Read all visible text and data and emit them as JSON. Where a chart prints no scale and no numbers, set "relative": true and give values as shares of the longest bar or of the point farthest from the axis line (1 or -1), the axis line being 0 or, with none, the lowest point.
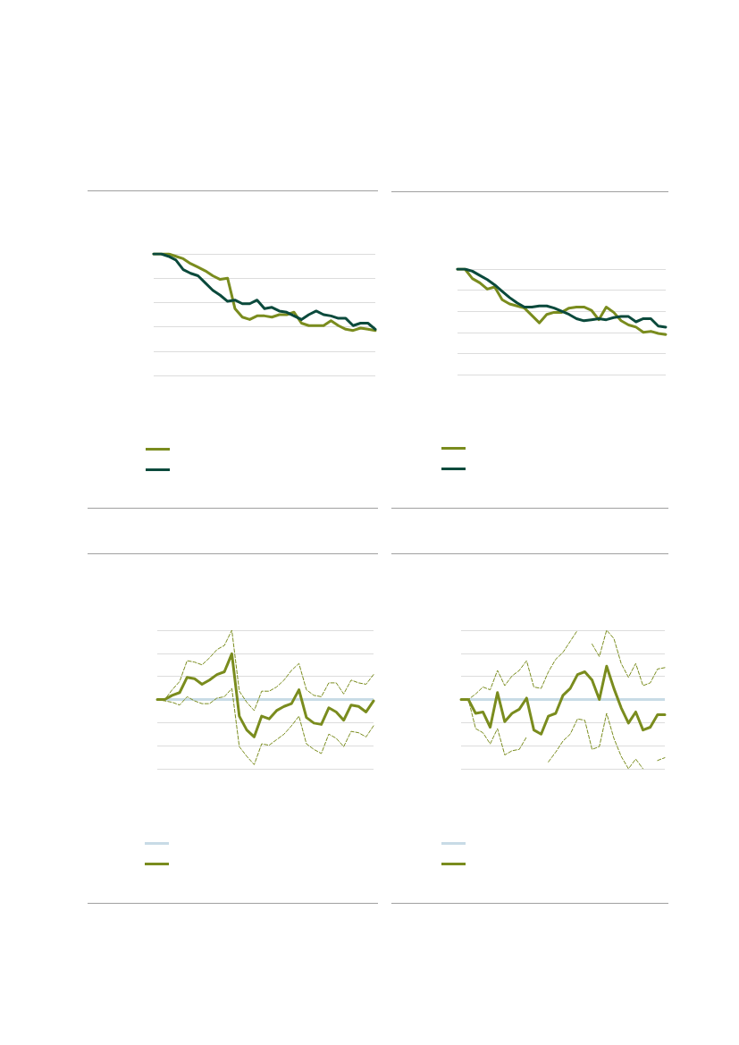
{
  "chart_data": [
    {
      "type": "line",
      "relative": true,
      "grid": "y",
      "marker": "none",
      "line_style": "solid",
      "categories": [
        null,
        null,
        null,
        null,
        null,
        null,
        null,
        null,
        null,
        null,
        null,
        null,
        null,
        null,
        null,
        null,
        null,
        null,
        null,
        null,
        null,
        null,
        null,
        null,
        null,
        null,
        null,
        null,
        null,
        null,
        null
      ],
      "series": [
        {
          "color": "#7a8c1e",
          "values": [
            1,
            1,
            1,
            0.98,
            0.96,
            0.92,
            0.89,
            0.86,
            0.82,
            0.79,
            0.8,
            0.55,
            0.48,
            0.46,
            0.49,
            0.49,
            0.48,
            0.5,
            0.5,
            0.52,
            0.43,
            0.41,
            0.41,
            0.41,
            0.45,
            0.41,
            0.38,
            0.37,
            0.39,
            0.38,
            0.37
          ]
        },
        {
          "color": "#0b4a3c",
          "values": [
            1,
            1,
            0.98,
            0.95,
            0.87,
            0.84,
            0.82,
            0.76,
            0.7,
            0.66,
            0.61,
            0.62,
            0.59,
            0.59,
            0.62,
            0.55,
            0.56,
            0.53,
            0.52,
            0.49,
            0.46,
            0.5,
            0.53,
            0.5,
            0.49,
            0.47,
            0.47,
            0.41,
            0.43,
            0.43,
            0.38
          ]
        }
      ]
    },
    {
      "type": "line",
      "relative": true,
      "grid": "y",
      "marker": "none",
      "line_style": "solid",
      "categories": [
        null,
        null,
        null,
        null,
        null,
        null,
        null,
        null,
        null,
        null,
        null,
        null,
        null,
        null,
        null,
        null,
        null,
        null,
        null,
        null,
        null,
        null,
        null,
        null,
        null,
        null,
        null,
        null,
        null
      ],
      "series": [
        {
          "color": "#7a8c1e",
          "values": [
            1,
            1,
            0.91,
            0.87,
            0.81,
            0.83,
            0.71,
            0.67,
            0.65,
            0.63,
            0.56,
            0.49,
            0.57,
            0.59,
            0.59,
            0.63,
            0.64,
            0.64,
            0.61,
            0.52,
            0.64,
            0.59,
            0.51,
            0.47,
            0.45,
            0.4,
            0.41,
            0.39,
            0.38
          ]
        },
        {
          "color": "#0b4a3c",
          "values": [
            1,
            1,
            0.98,
            0.94,
            0.9,
            0.85,
            0.79,
            0.73,
            0.68,
            0.64,
            0.64,
            0.65,
            0.65,
            0.63,
            0.6,
            0.57,
            0.53,
            0.51,
            0.52,
            0.53,
            0.52,
            0.54,
            0.55,
            0.55,
            0.5,
            0.53,
            0.53,
            0.46,
            0.45
          ]
        }
      ]
    },
    {
      "type": "line",
      "relative": true,
      "grid": "y",
      "marker": "none",
      "line_style": "solid",
      "categories": [
        null,
        null,
        null,
        null,
        null,
        null,
        null,
        null,
        null,
        null,
        null,
        null,
        null,
        null,
        null,
        null,
        null,
        null,
        null,
        null,
        null,
        null,
        null,
        null,
        null,
        null,
        null,
        null,
        null,
        null
      ],
      "ref_lines": [
        {
          "axis": "y",
          "value": 0.5,
          "color": "#c8dbe6"
        }
      ],
      "series": [
        {
          "color": "#7a8c1e",
          "line_style": "dashed",
          "values": [
            0.5,
            0.5,
            0.57,
            0.63,
            0.78,
            0.77,
            0.75,
            0.8,
            0.86,
            0.89,
            1.0,
            0.56,
            0.48,
            0.42,
            0.56,
            0.56,
            0.59,
            0.64,
            0.71,
            0.76,
            0.57,
            0.53,
            0.52,
            0.62,
            0.62,
            0.54,
            0.64,
            0.62,
            0.61,
            0.68
          ]
        },
        {
          "color": "#7a8c1e",
          "line_style": "dashed",
          "values": [
            0.5,
            0.49,
            0.48,
            0.46,
            0.52,
            0.49,
            0.47,
            0.47,
            0.51,
            0.52,
            0.58,
            0.16,
            0.09,
            0.03,
            0.18,
            0.17,
            0.21,
            0.25,
            0.31,
            0.38,
            0.18,
            0.14,
            0.11,
            0.25,
            0.22,
            0.16,
            0.27,
            0.26,
            0.23,
            0.31
          ]
        },
        {
          "color": "#7a8c1e",
          "values": [
            0.5,
            0.5,
            0.53,
            0.55,
            0.66,
            0.65,
            0.61,
            0.64,
            0.68,
            0.7,
            0.83,
            0.38,
            0.28,
            0.23,
            0.38,
            0.36,
            0.42,
            0.45,
            0.47,
            0.57,
            0.37,
            0.33,
            0.32,
            0.44,
            0.41,
            0.35,
            0.46,
            0.45,
            0.41,
            0.49
          ]
        }
      ]
    },
    {
      "type": "line",
      "relative": true,
      "grid": "y",
      "marker": "none",
      "line_style": "solid",
      "categories": [
        null,
        null,
        null,
        null,
        null,
        null,
        null,
        null,
        null,
        null,
        null,
        null,
        null,
        null,
        null,
        null,
        null,
        null,
        null,
        null,
        null,
        null,
        null,
        null,
        null,
        null,
        null,
        null,
        null
      ],
      "ref_lines": [
        {
          "axis": "y",
          "value": 0.5,
          "color": "#c8dbe6"
        }
      ],
      "series": [
        {
          "color": "#7a8c1e",
          "line_style": "dashed",
          "values": [
            0.5,
            0.5,
            0.54,
            0.59,
            0.57,
            0.71,
            0.6,
            0.67,
            0.71,
            0.78,
            0.59,
            0.58,
            0.7,
            0.79,
            0.84,
            0.92,
            1.0,
            null,
            0.9,
            0.81,
            1.0,
            0.94,
            0.76,
            0.66,
            0.76,
            0.6,
            0.62,
            0.72,
            0.73
          ]
        },
        {
          "color": "#7a8c1e",
          "line_style": "dashed",
          "values": [
            0.5,
            0.5,
            0.29,
            0.26,
            0.18,
            0.29,
            0.1,
            0.13,
            0.14,
            0.23,
            null,
            null,
            0.05,
            0.12,
            0.2,
            0.25,
            0.36,
            0.35,
            0.14,
            0.16,
            0.4,
            0.22,
            0.09,
            0,
            0.07,
            0,
            null,
            0.06,
            0.08
          ]
        },
        {
          "color": "#7a8c1e",
          "values": [
            0.5,
            0.5,
            0.4,
            0.41,
            0.3,
            0.55,
            0.34,
            0.4,
            0.43,
            0.51,
            0.28,
            0.25,
            0.38,
            0.4,
            0.53,
            0.58,
            0.68,
            0.7,
            0.64,
            0.5,
            0.74,
            0.58,
            0.44,
            0.33,
            0.41,
            0.28,
            0.3,
            0.39,
            0.39
          ]
        }
      ]
    }
  ]
}
